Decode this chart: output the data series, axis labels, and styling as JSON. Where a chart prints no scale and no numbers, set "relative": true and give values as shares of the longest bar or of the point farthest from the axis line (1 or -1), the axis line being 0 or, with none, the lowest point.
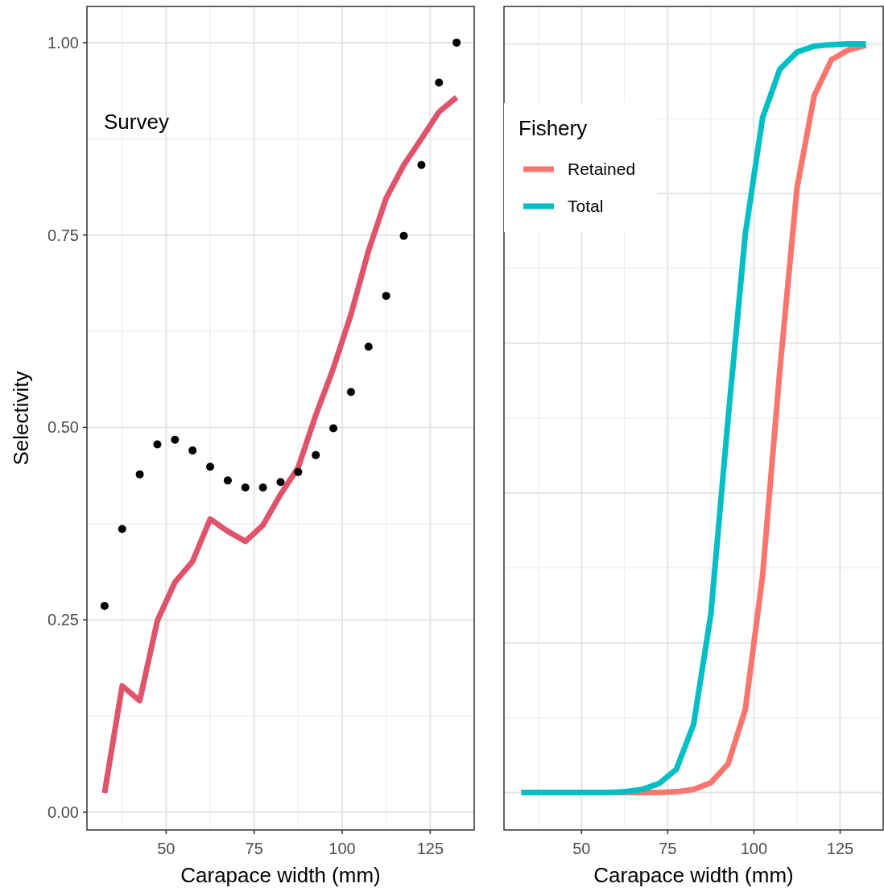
{
  "chart_data": [
    {
      "type": "line",
      "xlabel": "Carapace width (mm)",
      "ylabel": "Selectivity",
      "annotations": [
        "Survey"
      ],
      "x": [
        32.5,
        37.5,
        42.5,
        47.5,
        52.5,
        57.5,
        62.5,
        67.5,
        72.5,
        77.5,
        82.5,
        87.5,
        92.5,
        97.5,
        102.5,
        107.5,
        112.5,
        117.5,
        122.5,
        127.5,
        132.5
      ],
      "series": [
        {
          "type": "line",
          "color": "#df536b",
          "values": [
            0.025,
            0.164,
            0.145,
            0.249,
            0.299,
            0.326,
            0.381,
            0.365,
            0.352,
            0.373,
            0.413,
            0.448,
            0.516,
            0.577,
            0.647,
            0.73,
            0.798,
            0.841,
            0.875,
            0.91,
            0.929
          ]
        },
        {
          "type": "scatter",
          "color": "#000000",
          "values": [
            0.268,
            0.368,
            0.439,
            0.478,
            0.484,
            0.47,
            0.449,
            0.431,
            0.422,
            0.422,
            0.429,
            0.442,
            0.464,
            0.499,
            0.546,
            0.605,
            0.671,
            0.749,
            0.841,
            0.948,
            1.0
          ]
        }
      ],
      "xlim": [
        27.5,
        137.5
      ],
      "xticks": [
        50,
        75,
        100,
        125
      ],
      "ylim": [
        -0.023,
        1.047
      ],
      "yticks": [
        {
          "value": 0,
          "label": "0.00"
        },
        {
          "value": 0.25,
          "label": "0.25"
        },
        {
          "value": 0.5,
          "label": "0.50"
        },
        {
          "value": 0.75,
          "label": "0.75"
        },
        {
          "value": 1,
          "label": "1.00"
        }
      ],
      "grid": true
    },
    {
      "type": "line",
      "xlabel": "Carapace width (mm)",
      "legend_title": "Fishery",
      "legend": "top left",
      "relative": true,
      "x": [
        32.5,
        37.5,
        42.5,
        47.5,
        52.5,
        57.5,
        62.5,
        67.5,
        72.5,
        77.5,
        82.5,
        87.5,
        92.5,
        97.5,
        102.5,
        107.5,
        112.5,
        117.5,
        122.5,
        127.5,
        132.5
      ],
      "series": [
        {
          "name": "Retained",
          "color": "#f8766d",
          "values": [
            null,
            null,
            null,
            null,
            null,
            0,
            0,
            0,
            0,
            0.001,
            0.004,
            0.013,
            0.038,
            0.111,
            0.289,
            0.563,
            0.808,
            0.931,
            0.979,
            0.992,
            0.998
          ]
        },
        {
          "name": "Total",
          "color": "#00bfc4",
          "values": [
            0,
            0,
            0,
            0,
            0,
            0,
            0.001,
            0.004,
            0.012,
            0.031,
            0.091,
            0.238,
            0.499,
            0.746,
            0.901,
            0.966,
            0.989,
            0.997,
            0.999,
            1.0,
            1.0
          ]
        }
      ],
      "xlim": [
        27.5,
        137.5
      ],
      "xticks": [
        50,
        75,
        100,
        125
      ],
      "grid": true
    }
  ]
}
